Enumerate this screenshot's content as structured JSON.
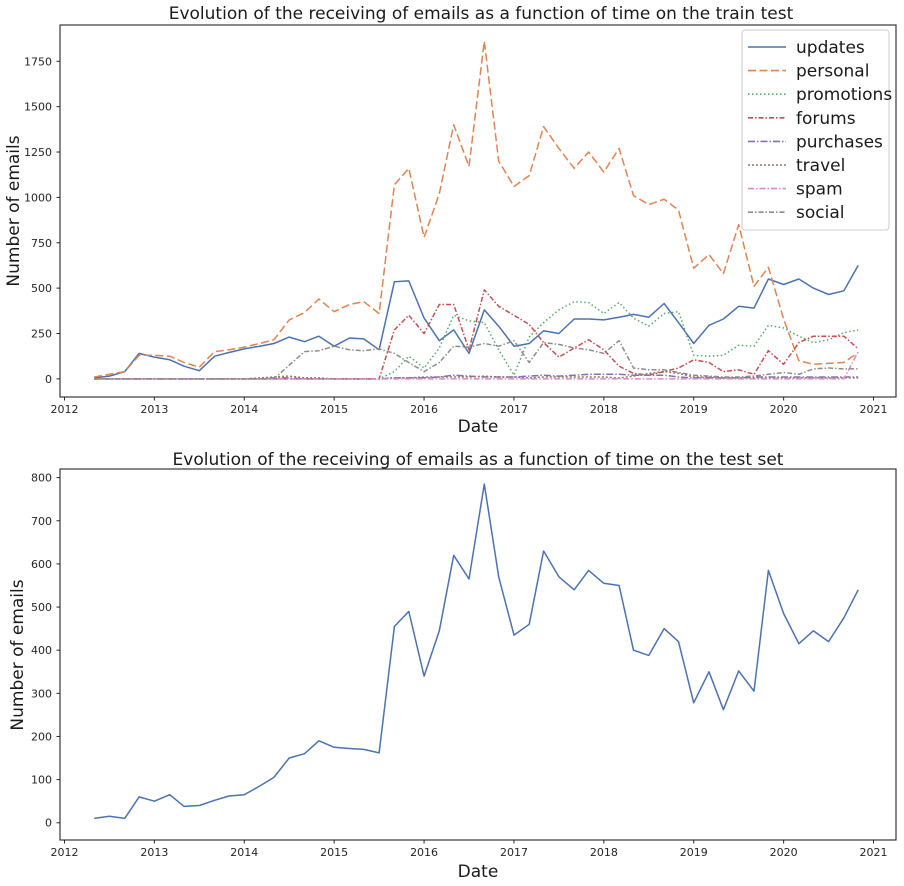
{
  "chart_data": [
    {
      "type": "line",
      "title": "Evolution of the receiving of emails as a function of time on the train test",
      "xlabel": "Date",
      "ylabel": "Number of emails",
      "xlim": [
        2011.95,
        2021.25
      ],
      "ylim": [
        -100,
        1950
      ],
      "xticks": [
        "2012",
        "2013",
        "2014",
        "2015",
        "2016",
        "2017",
        "2018",
        "2019",
        "2020",
        "2021"
      ],
      "yticks": [
        "0",
        "250",
        "500",
        "750",
        "1000",
        "1250",
        "1500",
        "1750"
      ],
      "grid": false,
      "legend_position": "top-right",
      "x": [
        "2012.33",
        "2012.50",
        "2012.67",
        "2012.83",
        "2013.00",
        "2013.17",
        "2013.33",
        "2013.50",
        "2013.67",
        "2013.83",
        "2014.00",
        "2014.17",
        "2014.33",
        "2014.50",
        "2014.67",
        "2014.83",
        "2015.00",
        "2015.17",
        "2015.33",
        "2015.50",
        "2015.67",
        "2015.83",
        "2016.00",
        "2016.17",
        "2016.33",
        "2016.50",
        "2016.67",
        "2016.83",
        "2017.00",
        "2017.17",
        "2017.33",
        "2017.50",
        "2017.67",
        "2017.83",
        "2018.00",
        "2018.17",
        "2018.33",
        "2018.50",
        "2018.67",
        "2018.83",
        "2019.00",
        "2019.17",
        "2019.33",
        "2019.50",
        "2019.67",
        "2019.83",
        "2020.00",
        "2020.17",
        "2020.33",
        "2020.50",
        "2020.67",
        "2020.83"
      ],
      "series": [
        {
          "name": "updates",
          "color": "#4c72b0",
          "dash": "none",
          "values": [
            5,
            15,
            40,
            140,
            120,
            105,
            70,
            45,
            125,
            145,
            165,
            180,
            195,
            230,
            205,
            235,
            180,
            225,
            220,
            160,
            535,
            540,
            335,
            210,
            270,
            140,
            380,
            290,
            180,
            195,
            265,
            250,
            330,
            330,
            325,
            340,
            355,
            340,
            415,
            310,
            195,
            295,
            330,
            400,
            390,
            550,
            520,
            550,
            500,
            465,
            485,
            625
          ]
        },
        {
          "name": "personal",
          "color": "#dd8452",
          "dash": "8 3.5",
          "values": [
            10,
            25,
            40,
            130,
            130,
            125,
            90,
            65,
            150,
            160,
            175,
            195,
            215,
            325,
            365,
            440,
            370,
            410,
            425,
            360,
            1070,
            1160,
            780,
            1020,
            1400,
            1170,
            1860,
            1200,
            1060,
            1120,
            1390,
            1270,
            1160,
            1250,
            1140,
            1270,
            1010,
            960,
            990,
            930,
            610,
            685,
            580,
            850,
            510,
            615,
            330,
            100,
            80,
            85,
            90,
            145
          ]
        },
        {
          "name": "promotions",
          "color": "#55a868",
          "dash": "1.5 2.5",
          "values": [
            0,
            0,
            0,
            0,
            0,
            0,
            0,
            0,
            0,
            0,
            0,
            0,
            0,
            0,
            0,
            0,
            0,
            0,
            0,
            0,
            40,
            125,
            60,
            170,
            350,
            320,
            310,
            160,
            20,
            230,
            310,
            380,
            425,
            420,
            360,
            420,
            335,
            290,
            360,
            370,
            130,
            125,
            130,
            185,
            180,
            295,
            280,
            235,
            200,
            215,
            255,
            270
          ]
        },
        {
          "name": "forums",
          "color": "#c44e52",
          "dash": "5 2 1.5 2",
          "values": [
            0,
            0,
            0,
            0,
            0,
            0,
            0,
            0,
            0,
            0,
            0,
            0,
            0,
            0,
            0,
            0,
            0,
            0,
            0,
            0,
            270,
            350,
            250,
            410,
            410,
            160,
            490,
            400,
            350,
            300,
            200,
            120,
            170,
            215,
            160,
            70,
            30,
            20,
            40,
            60,
            105,
            90,
            40,
            50,
            25,
            155,
            80,
            200,
            235,
            235,
            235,
            165
          ]
        },
        {
          "name": "purchases",
          "color": "#8172b3",
          "dash": "7 2 1.5 2",
          "values": [
            0,
            0,
            0,
            0,
            0,
            0,
            0,
            0,
            0,
            0,
            0,
            0,
            5,
            5,
            0,
            0,
            0,
            0,
            0,
            0,
            5,
            5,
            5,
            10,
            20,
            15,
            10,
            10,
            10,
            15,
            20,
            15,
            20,
            25,
            25,
            25,
            20,
            20,
            20,
            10,
            5,
            5,
            5,
            5,
            10,
            10,
            10,
            10,
            10,
            10,
            10,
            10
          ]
        },
        {
          "name": "travel",
          "color": "#937860",
          "dash": "2 2",
          "values": [
            0,
            0,
            0,
            0,
            0,
            0,
            0,
            0,
            0,
            0,
            0,
            5,
            10,
            15,
            5,
            5,
            0,
            0,
            0,
            0,
            5,
            5,
            10,
            10,
            10,
            10,
            15,
            10,
            10,
            5,
            10,
            10,
            10,
            10,
            10,
            5,
            15,
            30,
            40,
            30,
            10,
            10,
            5,
            5,
            5,
            5,
            5,
            5,
            5,
            5,
            5,
            5
          ]
        },
        {
          "name": "spam",
          "color": "#da8bc3",
          "dash": "6 2 1.5 2",
          "values": [
            0,
            0,
            0,
            0,
            0,
            0,
            0,
            0,
            0,
            0,
            0,
            0,
            0,
            0,
            0,
            0,
            0,
            0,
            0,
            0,
            0,
            0,
            0,
            0,
            0,
            0,
            0,
            0,
            0,
            0,
            0,
            0,
            0,
            0,
            0,
            0,
            0,
            0,
            0,
            0,
            0,
            0,
            0,
            0,
            0,
            0,
            0,
            0,
            0,
            0,
            0,
            150
          ]
        },
        {
          "name": "social",
          "color": "#8c8c8c",
          "dash": "5 2 1.5 2",
          "values": [
            0,
            0,
            0,
            0,
            0,
            0,
            0,
            0,
            0,
            0,
            0,
            0,
            0,
            75,
            150,
            155,
            180,
            160,
            155,
            165,
            140,
            90,
            40,
            90,
            180,
            175,
            195,
            180,
            210,
            90,
            200,
            190,
            170,
            160,
            140,
            210,
            60,
            50,
            50,
            35,
            20,
            15,
            10,
            10,
            15,
            25,
            35,
            25,
            55,
            60,
            55,
            55
          ]
        }
      ]
    },
    {
      "type": "line",
      "title": "Evolution of the receiving of emails as a function of time on the test set",
      "xlabel": "Date",
      "ylabel": "Number of emails",
      "xlim": [
        2011.95,
        2021.25
      ],
      "ylim": [
        -40,
        820
      ],
      "xticks": [
        "2012",
        "2013",
        "2014",
        "2015",
        "2016",
        "2017",
        "2018",
        "2019",
        "2020",
        "2021"
      ],
      "yticks": [
        "0",
        "100",
        "200",
        "300",
        "400",
        "500",
        "600",
        "700",
        "800"
      ],
      "grid": false,
      "x": [
        "2012.33",
        "2012.50",
        "2012.67",
        "2012.83",
        "2013.00",
        "2013.17",
        "2013.33",
        "2013.50",
        "2013.67",
        "2013.83",
        "2014.00",
        "2014.17",
        "2014.33",
        "2014.50",
        "2014.67",
        "2014.83",
        "2015.00",
        "2015.17",
        "2015.33",
        "2015.50",
        "2015.67",
        "2015.83",
        "2016.00",
        "2016.17",
        "2016.33",
        "2016.50",
        "2016.67",
        "2016.83",
        "2017.00",
        "2017.17",
        "2017.33",
        "2017.50",
        "2017.67",
        "2017.83",
        "2018.00",
        "2018.17",
        "2018.33",
        "2018.50",
        "2018.67",
        "2018.83",
        "2019.00",
        "2019.17",
        "2019.33",
        "2019.50",
        "2019.67",
        "2019.83",
        "2020.00",
        "2020.17",
        "2020.33",
        "2020.50",
        "2020.67",
        "2020.83"
      ],
      "series": [
        {
          "color": "#4c72b0",
          "dash": "none",
          "values": [
            10,
            15,
            10,
            60,
            50,
            65,
            38,
            40,
            52,
            62,
            65,
            85,
            105,
            150,
            160,
            190,
            175,
            172,
            170,
            162,
            455,
            490,
            340,
            445,
            620,
            565,
            785,
            570,
            435,
            460,
            630,
            570,
            540,
            585,
            555,
            550,
            400,
            388,
            450,
            420,
            278,
            350,
            262,
            352,
            305,
            585,
            485,
            415,
            445,
            420,
            475,
            540
          ]
        }
      ]
    }
  ]
}
